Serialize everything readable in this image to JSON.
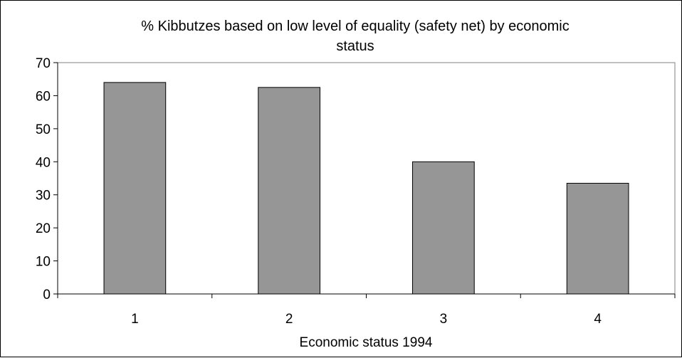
{
  "chart_data": {
    "type": "bar",
    "title_line1": "% Kibbutzes based on low level of equality (safety net) by economic",
    "title_line2": "status",
    "xlabel": "Economic status 1994",
    "ylabel": "",
    "categories": [
      "1",
      "2",
      "3",
      "4"
    ],
    "values": [
      64,
      62.5,
      40,
      33.5
    ],
    "ylim": [
      0,
      70
    ],
    "yticks": [
      "0",
      "10",
      "20",
      "30",
      "40",
      "50",
      "60",
      "70"
    ],
    "bar_color": "#969696",
    "grid": false,
    "legend": "none"
  }
}
